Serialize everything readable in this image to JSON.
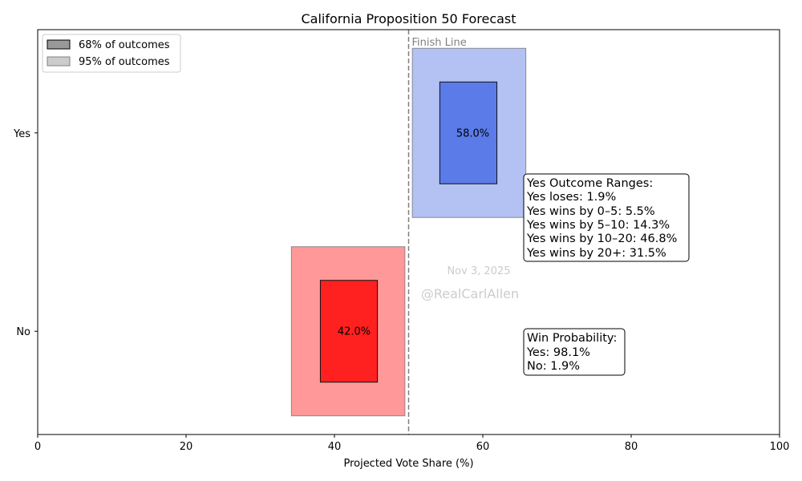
{
  "chart_data": {
    "type": "range_bar",
    "title": "California Proposition 50 Forecast",
    "xlabel": "Projected Vote Share (%)",
    "ylabel": "",
    "xlim": [
      0,
      100
    ],
    "x_ticks": [
      0,
      20,
      40,
      60,
      80,
      100
    ],
    "categories": [
      "Yes",
      "No"
    ],
    "series": [
      {
        "name": "Yes",
        "center": 58.0,
        "center_label": "58.0%",
        "range_68": [
          54.2,
          61.9
        ],
        "range_95": [
          50.5,
          65.8
        ],
        "color_68": "#5a7be8",
        "color_95": "#b3c2f3"
      },
      {
        "name": "No",
        "center": 42.0,
        "center_label": "42.0%",
        "range_68": [
          38.1,
          45.8
        ],
        "range_95": [
          34.2,
          49.5
        ],
        "color_68": "#ff2020",
        "color_95": "#ff9999"
      }
    ],
    "finish_line": {
      "x": 50,
      "label": "Finish Line"
    },
    "legend": {
      "position": "top-left",
      "entries": [
        {
          "label": "68% of outcomes",
          "color": "#999999"
        },
        {
          "label": "95% of outcomes",
          "color": "#cccccc"
        }
      ]
    },
    "annotations": {
      "outcome_ranges": [
        "Yes Outcome Ranges:",
        "Yes loses: 1.9%",
        "Yes wins by 0–5: 5.5%",
        "Yes wins by 5–10: 14.3%",
        "Yes wins by 10–20: 46.8%",
        "Yes wins by 20+: 31.5%"
      ],
      "win_probability": [
        "Win Probability:",
        "Yes: 98.1%",
        "No: 1.9%"
      ],
      "date": "Nov 3, 2025",
      "watermark": "@RealCarlAllen"
    }
  }
}
